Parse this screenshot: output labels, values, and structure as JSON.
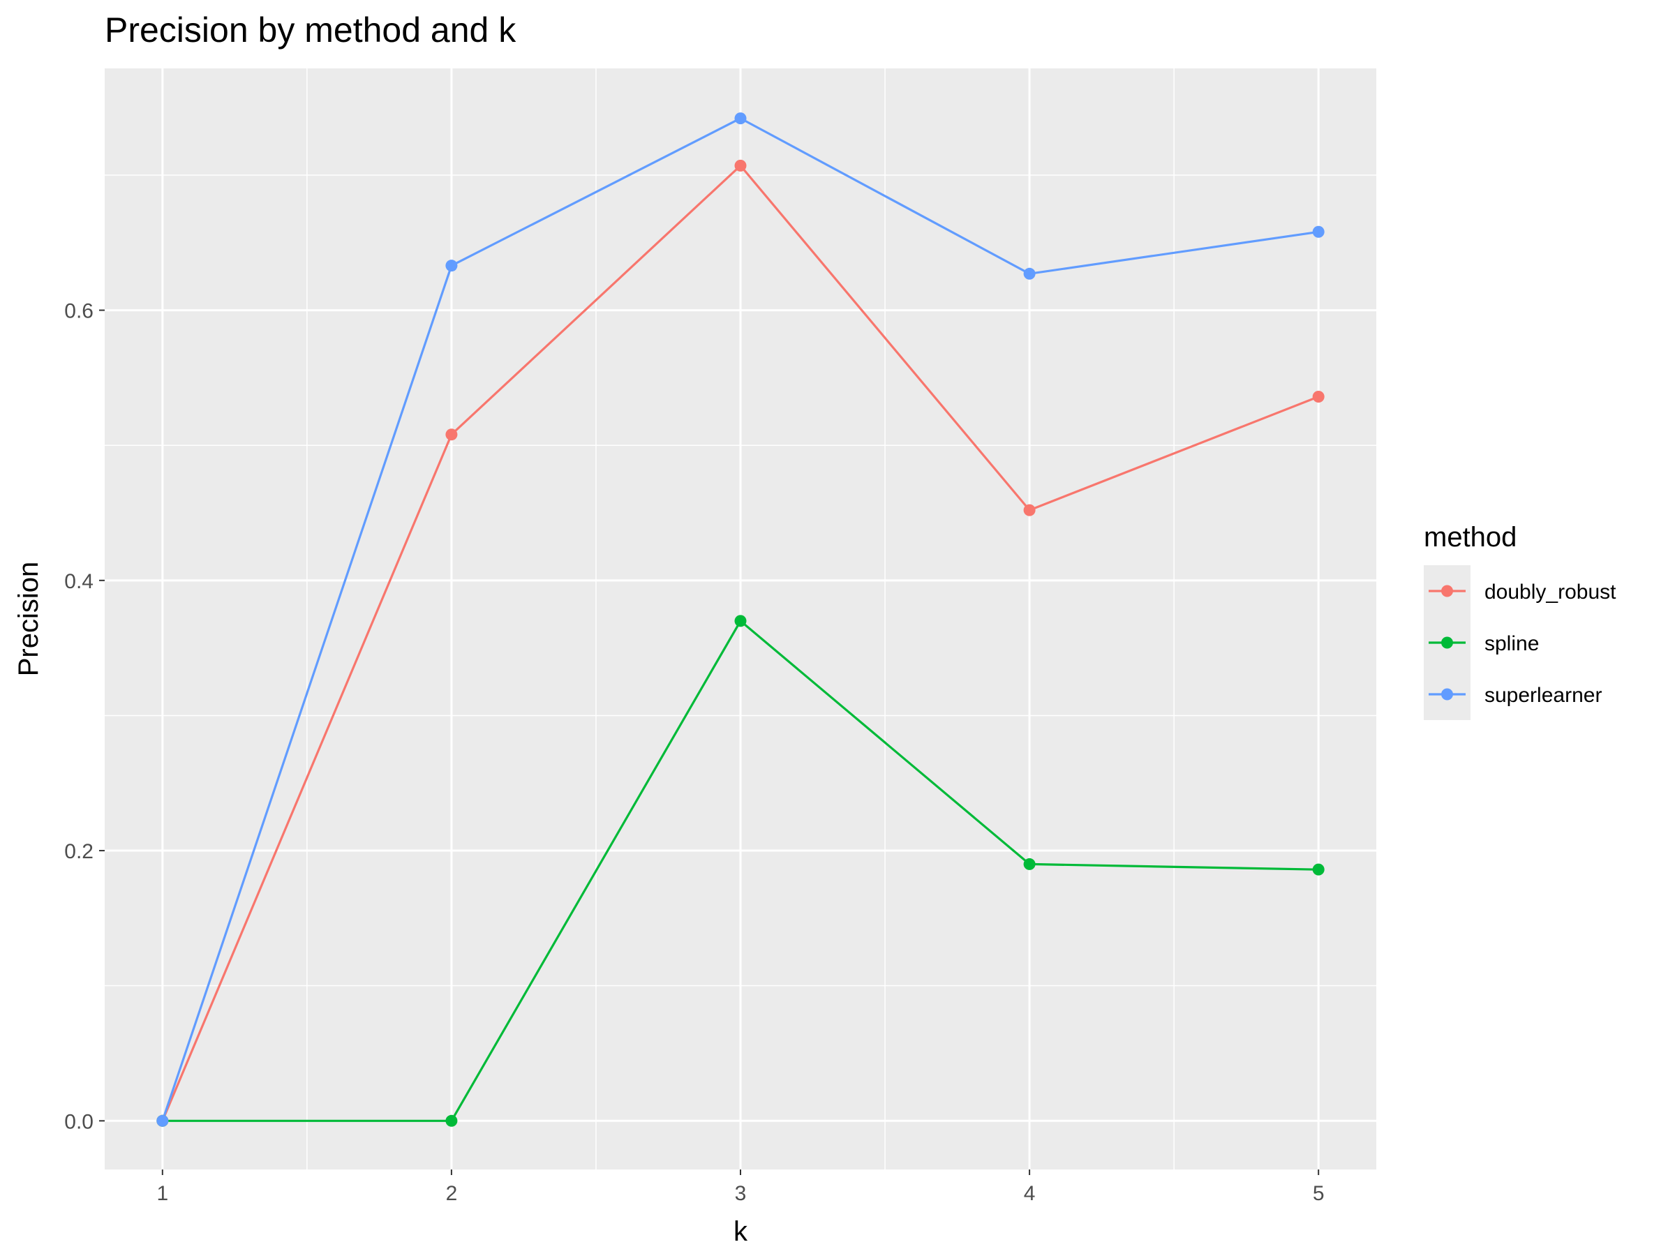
{
  "chart_data": {
    "type": "line",
    "title": "Precision by method and k",
    "xlabel": "k",
    "ylabel": "Precision",
    "x": [
      1,
      2,
      3,
      4,
      5
    ],
    "xlim": [
      0.8,
      5.2
    ],
    "ylim": [
      -0.036,
      0.779
    ],
    "x_ticks": [
      1,
      2,
      3,
      4,
      5
    ],
    "y_ticks": [
      0.0,
      0.2,
      0.4,
      0.6
    ],
    "y_tick_labels": [
      "0.0",
      "0.2",
      "0.4",
      "0.6"
    ],
    "grid": true,
    "legend_position": "right",
    "legend_title": "method",
    "series": [
      {
        "name": "doubly_robust",
        "color": "#F8766D",
        "values": [
          0.0,
          0.508,
          0.707,
          0.452,
          0.536
        ]
      },
      {
        "name": "spline",
        "color": "#00BA38",
        "values": [
          0.0,
          0.0,
          0.37,
          0.19,
          0.186
        ]
      },
      {
        "name": "superlearner",
        "color": "#619CFF",
        "values": [
          0.0,
          0.633,
          0.742,
          0.627,
          0.658
        ]
      }
    ]
  }
}
